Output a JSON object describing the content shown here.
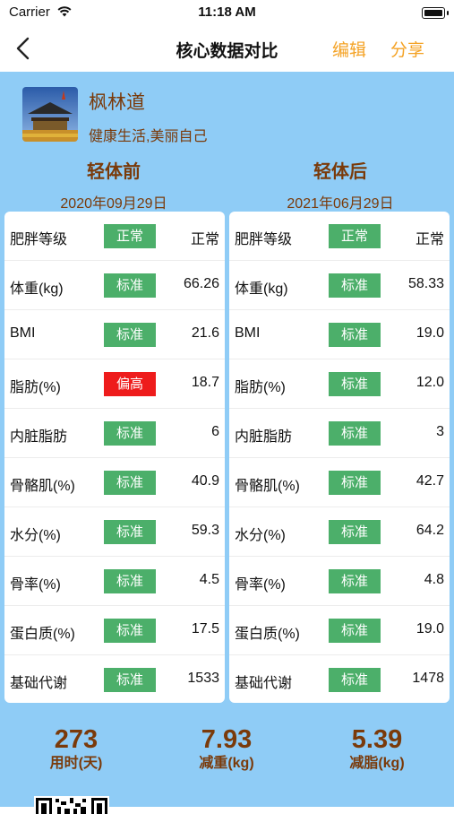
{
  "status_bar": {
    "carrier": "Carrier",
    "time": "11:18 AM"
  },
  "nav": {
    "title": "核心数据对比",
    "edit_label": "编辑",
    "share_label": "分享"
  },
  "profile": {
    "name": "枫林道",
    "motto": "健康生活,美丽自己"
  },
  "before": {
    "heading": "轻体前",
    "date": "2020年09月29日",
    "rows": [
      {
        "label": "肥胖等级",
        "status": "正常",
        "value": "正常",
        "level": "normal"
      },
      {
        "label": "体重(kg)",
        "status": "标准",
        "value": "66.26",
        "level": "normal"
      },
      {
        "label": "BMI",
        "status": "标准",
        "value": "21.6",
        "level": "normal"
      },
      {
        "label": "脂肪(%)",
        "status": "偏高",
        "value": "18.7",
        "level": "high"
      },
      {
        "label": "内脏脂肪",
        "status": "标准",
        "value": "6",
        "level": "normal"
      },
      {
        "label": "骨骼肌(%)",
        "status": "标准",
        "value": "40.9",
        "level": "normal"
      },
      {
        "label": "水分(%)",
        "status": "标准",
        "value": "59.3",
        "level": "normal"
      },
      {
        "label": "骨率(%)",
        "status": "标准",
        "value": "4.5",
        "level": "normal"
      },
      {
        "label": "蛋白质(%)",
        "status": "标准",
        "value": "17.5",
        "level": "normal"
      },
      {
        "label": "基础代谢",
        "status": "标准",
        "value": "1533",
        "level": "normal"
      }
    ]
  },
  "after": {
    "heading": "轻体后",
    "date": "2021年06月29日",
    "rows": [
      {
        "label": "肥胖等级",
        "status": "正常",
        "value": "正常",
        "level": "normal"
      },
      {
        "label": "体重(kg)",
        "status": "标准",
        "value": "58.33",
        "level": "normal"
      },
      {
        "label": "BMI",
        "status": "标准",
        "value": "19.0",
        "level": "normal"
      },
      {
        "label": "脂肪(%)",
        "status": "标准",
        "value": "12.0",
        "level": "normal"
      },
      {
        "label": "内脏脂肪",
        "status": "标准",
        "value": "3",
        "level": "normal"
      },
      {
        "label": "骨骼肌(%)",
        "status": "标准",
        "value": "42.7",
        "level": "normal"
      },
      {
        "label": "水分(%)",
        "status": "标准",
        "value": "64.2",
        "level": "normal"
      },
      {
        "label": "骨率(%)",
        "status": "标准",
        "value": "4.8",
        "level": "normal"
      },
      {
        "label": "蛋白质(%)",
        "status": "标准",
        "value": "19.0",
        "level": "normal"
      },
      {
        "label": "基础代谢",
        "status": "标准",
        "value": "1478",
        "level": "normal"
      }
    ]
  },
  "summary": [
    {
      "value": "273",
      "label": "用时(天)"
    },
    {
      "value": "7.93",
      "label": "减重(kg)"
    },
    {
      "value": "5.39",
      "label": "减脂(kg)"
    }
  ],
  "colors": {
    "accent": "#f4a224",
    "brown": "#7a3a0a",
    "panel": "#8fccf6",
    "normal_badge": "#4caf6a",
    "high_badge": "#ee1c1c"
  },
  "icons": [
    "wifi-icon",
    "battery-icon",
    "back-chevron-icon",
    "qr-code-icon"
  ]
}
